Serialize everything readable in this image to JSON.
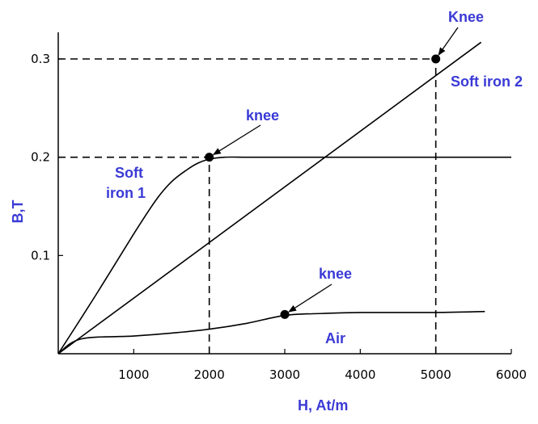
{
  "chart_data": {
    "type": "line",
    "xlabel": "H, At/m",
    "ylabel": "B,T",
    "xlim": [
      0,
      6000
    ],
    "ylim": [
      0,
      0.3
    ],
    "x_ticks": [
      "1000",
      "2000",
      "3000",
      "4000",
      "5000",
      "6000"
    ],
    "y_ticks": [
      "0.1",
      "0.2",
      "0.3"
    ],
    "grid": false,
    "series": [
      {
        "name": "Soft iron 1",
        "x": [
          0,
          500,
          1000,
          1300,
          1500,
          1700,
          1850,
          2000,
          2200,
          2500,
          3000,
          4000,
          5000,
          6000
        ],
        "y": [
          0,
          0.06,
          0.122,
          0.157,
          0.175,
          0.187,
          0.194,
          0.198,
          0.2,
          0.2,
          0.2,
          0.2,
          0.2,
          0.2
        ]
      },
      {
        "name": "Soft iron 2",
        "x": [
          0,
          5600
        ],
        "y": [
          0,
          0.317
        ]
      },
      {
        "name": "Air",
        "x": [
          0,
          300,
          1000,
          1500,
          2000,
          2500,
          3000,
          3500,
          4000,
          5000,
          5650
        ],
        "y": [
          0,
          0.015,
          0.018,
          0.021,
          0.025,
          0.031,
          0.039,
          0.041,
          0.042,
          0.042,
          0.043
        ]
      }
    ],
    "knee_points": [
      {
        "label": "knee",
        "x": 2000,
        "y": 0.2
      },
      {
        "label": "Knee",
        "x": 5000,
        "y": 0.3
      },
      {
        "label": "knee",
        "x": 3000,
        "y": 0.04
      }
    ],
    "reference_lines": [
      {
        "axis": "y",
        "value": 0.3,
        "from_x": 0,
        "to_x": 5000
      },
      {
        "axis": "x",
        "value": 5000,
        "from_y": 0,
        "to_y": 0.3
      },
      {
        "axis": "y",
        "value": 0.2,
        "from_x": 0,
        "to_x": 2000
      },
      {
        "axis": "x",
        "value": 2000,
        "from_y": 0,
        "to_y": 0.2
      }
    ],
    "annotations": {
      "knee_iron1": "knee",
      "knee_iron2": "Knee",
      "knee_air": "knee",
      "soft_iron_2": "Soft iron 2",
      "soft_iron_1_line1": "Soft",
      "soft_iron_1_line2": "iron 1",
      "air": "Air"
    },
    "colors": {
      "curves": "#000000",
      "labels": "#3a3ad6"
    }
  }
}
